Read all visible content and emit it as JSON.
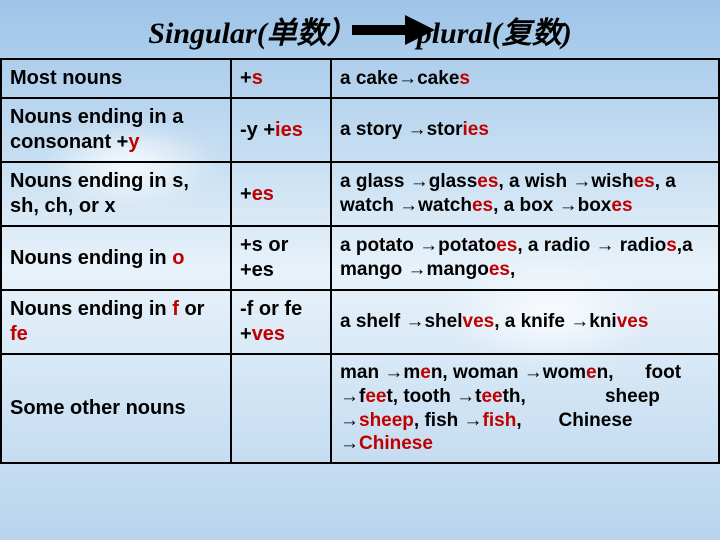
{
  "colors": {
    "accent": "#c00000",
    "text": "#000000",
    "border": "#000000"
  },
  "header": {
    "singular": "Singular(单数）",
    "plural": "plural(复数)"
  },
  "rows": [
    {
      "category": "Most nouns",
      "rule_pre": "+",
      "rule_red": "s",
      "ex_parts": [
        "a cake→cake",
        "s"
      ]
    },
    {
      "cat_pre": "Nouns ending in a consonant +",
      "cat_red": "y",
      "rule_pre": "-y +",
      "rule_red": "ies",
      "ex_parts": [
        "a story →stor",
        "ies"
      ]
    },
    {
      "category": "Nouns ending in s, sh, ch, or x",
      "rule_pre": "+",
      "rule_red": "es",
      "ex_parts": [
        "a glass →glass",
        "es",
        ", a wish →wish",
        "es",
        ", a watch →watch",
        "es",
        ", a box →box",
        "es"
      ]
    },
    {
      "cat_pre": "Nouns ending in ",
      "cat_red": "o",
      "rule_plain": "+s or +es",
      "ex_parts": [
        "a potato →potato",
        "es",
        ", a radio → radio",
        "s",
        ",a mango →mango",
        "es",
        ","
      ]
    },
    {
      "cat_pre": "Nouns ending in ",
      "cat_red1": "f",
      "cat_mid": " or ",
      "cat_red2": "fe",
      "rule_line1": "-f or fe",
      "rule_pre2": "+",
      "rule_red2": "ves",
      "ex_parts": [
        "a shelf →shel",
        "ves",
        ", a knife →kni",
        "ves"
      ]
    },
    {
      "category": "Some other nouns",
      "rule_plain": "",
      "ex_parts": [
        "man →m",
        "e",
        "n, woman →wom",
        "e",
        "n,      foot →f",
        "ee",
        "t, tooth →t",
        "ee",
        "th,               sheep →",
        "sheep",
        ", fish →",
        "fish",
        ",       Chinese →",
        "Chinese"
      ]
    }
  ]
}
